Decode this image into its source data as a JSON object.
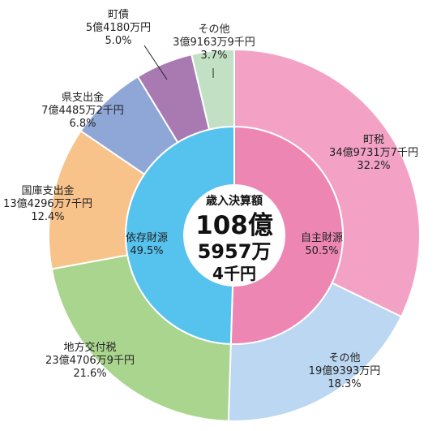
{
  "chart_data": {
    "type": "pie",
    "center": {
      "title": "歳入決算額",
      "line1": "108億",
      "line2": "5957万",
      "line3": "4千円"
    },
    "inner": [
      {
        "label": "自主財源",
        "percent": 50.5,
        "percent_text": "50.5%",
        "color": "#EE86B3"
      },
      {
        "label": "依存財源",
        "percent": 49.5,
        "percent_text": "49.5%",
        "color": "#56C2EE"
      }
    ],
    "outer": [
      {
        "label": "町税",
        "amount": "34億9731万7千円",
        "percent": 32.2,
        "percent_text": "32.2%",
        "color": "#F3A2C6"
      },
      {
        "label": "その他",
        "amount": "19億9393万円",
        "percent": 18.3,
        "percent_text": "18.3%",
        "color": "#BBD7F1"
      },
      {
        "label": "地方交付税",
        "amount": "23億4706万9千円",
        "percent": 21.6,
        "percent_text": "21.6%",
        "color": "#A9D58E"
      },
      {
        "label": "国庫支出金",
        "amount": "13億4296万7千円",
        "percent": 12.4,
        "percent_text": "12.4%",
        "color": "#F8C38A"
      },
      {
        "label": "県支出金",
        "amount": "7億4485万2千円",
        "percent": 6.8,
        "percent_text": "6.8%",
        "color": "#8EA7D7"
      },
      {
        "label": "町債",
        "amount": "5億4180万円",
        "percent": 5.0,
        "percent_text": "5.0%",
        "color": "#A97AB2"
      },
      {
        "label": "その他",
        "amount": "3億9163万9千円",
        "percent": 3.7,
        "percent_text": "3.7%",
        "color": "#C2E0C4"
      }
    ]
  }
}
